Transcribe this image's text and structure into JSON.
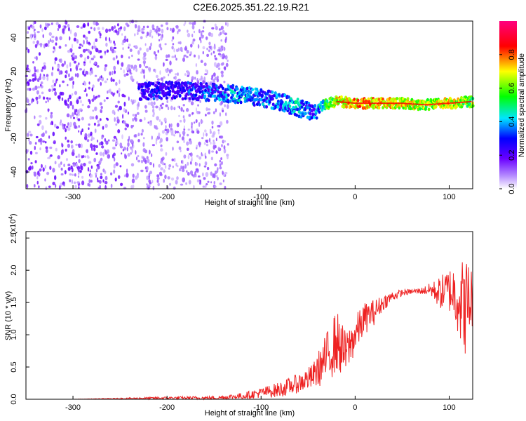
{
  "figure": {
    "title": "C2E6.2025.351.22.19.R21"
  },
  "chart_data": [
    {
      "type": "heatmap",
      "xlabel": "Height of straight line (km)",
      "ylabel": "Frequency (Hz)",
      "xlim": [
        -350,
        125
      ],
      "ylim": [
        -50,
        50
      ],
      "xticks": [
        -300,
        -200,
        -100,
        0,
        100
      ],
      "yticks": [
        -40,
        -20,
        0,
        20,
        40
      ],
      "colorbar": {
        "label": "Normalized spectral amplitude",
        "range": [
          0.0,
          1.0
        ],
        "ticks": [
          0.0,
          0.2,
          0.4,
          0.6,
          0.8
        ],
        "colors": [
          "#ffffff",
          "#6a00ff",
          "#0000ff",
          "#00ffff",
          "#00ff00",
          "#ffff00",
          "#ff0000",
          "#ff007f"
        ]
      },
      "ridge": {
        "x": [
          -230,
          -200,
          -170,
          -140,
          -120,
          -100,
          -80,
          -60,
          -45,
          -35,
          -20,
          0,
          25,
          50,
          75,
          100,
          125
        ],
        "y": [
          8,
          9,
          8,
          7,
          6,
          4,
          2,
          -2,
          -5,
          0,
          2,
          1,
          1,
          1,
          0,
          1,
          2
        ],
        "amplitude": [
          0.35,
          0.35,
          0.4,
          0.45,
          0.5,
          0.45,
          0.45,
          0.5,
          0.4,
          0.6,
          0.8,
          0.85,
          0.85,
          0.8,
          0.75,
          0.8,
          0.7
        ]
      },
      "grid": false
    },
    {
      "type": "line",
      "xlabel": "Height of straight line (km)",
      "ylabel": "SNR (10 * v/v)",
      "y_multiplier": "(x10^4)",
      "xlim": [
        -350,
        125
      ],
      "ylim": [
        0,
        2.6
      ],
      "xticks": [
        -300,
        -200,
        -100,
        0,
        100
      ],
      "yticks": [
        0.0,
        0.5,
        1.0,
        1.5,
        2.0,
        2.5
      ],
      "series": [
        {
          "color": "#ee2222",
          "x": [
            -350,
            -300,
            -250,
            -200,
            -150,
            -120,
            -100,
            -80,
            -60,
            -45,
            -30,
            -20,
            -10,
            0,
            10,
            20,
            30,
            40,
            50,
            60,
            70,
            80,
            90,
            100,
            110,
            115,
            120,
            125
          ],
          "y": [
            0.0,
            0.0,
            0.01,
            0.02,
            0.02,
            0.05,
            0.1,
            0.15,
            0.25,
            0.35,
            0.65,
            0.9,
            0.7,
            1.0,
            1.25,
            1.35,
            1.5,
            1.6,
            1.65,
            1.67,
            1.68,
            1.7,
            1.65,
            1.7,
            1.6,
            1.4,
            1.5,
            1.6
          ],
          "spread": [
            0.0,
            0.0,
            0.01,
            0.02,
            0.03,
            0.05,
            0.08,
            0.12,
            0.15,
            0.2,
            0.4,
            0.5,
            0.35,
            0.3,
            0.25,
            0.2,
            0.12,
            0.08,
            0.05,
            0.04,
            0.05,
            0.1,
            0.25,
            0.35,
            0.6,
            0.8,
            0.7,
            0.5
          ]
        }
      ],
      "grid": false
    }
  ]
}
